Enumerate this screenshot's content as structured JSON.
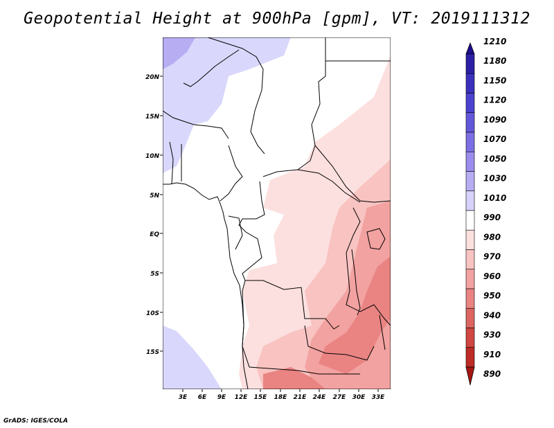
{
  "title": "Geopotential Height at 900hPa [gpm], VT: 2019111312",
  "credit": "GrADS: IGES/COLA",
  "lat_labels": [
    "20N",
    "15N",
    "10N",
    "5N",
    "EQ",
    "5S",
    "10S",
    "15S"
  ],
  "lon_labels": [
    "3E",
    "6E",
    "9E",
    "12E",
    "15E",
    "18E",
    "21E",
    "24E",
    "27E",
    "30E",
    "33E"
  ],
  "colorbar": {
    "levels": [
      "1210",
      "1180",
      "1150",
      "1120",
      "1090",
      "1070",
      "1050",
      "1030",
      "1010",
      "990",
      "980",
      "970",
      "960",
      "950",
      "940",
      "930",
      "910",
      "890"
    ],
    "colors": [
      "#1e0d8e",
      "#2c1fa6",
      "#3b30bd",
      "#4b43cf",
      "#6357d9",
      "#7d6fe3",
      "#9a8ded",
      "#b7adf3",
      "#d7d2fa",
      "#ffffff",
      "#fce0df",
      "#f8c3c1",
      "#f2a2a0",
      "#e98482",
      "#dd6561",
      "#cf4642",
      "#bd2b27",
      "#a51612"
    ],
    "top_color": "#1e0d8e",
    "bottom_color": "#a51612"
  },
  "colors": {
    "land_high": "#d9d7fb",
    "land_higher": "#b7adf3",
    "low1": "#fce0df",
    "low2": "#f8c3c1",
    "low3": "#f2a2a0",
    "low4": "#e98482",
    "border": "#000000"
  }
}
